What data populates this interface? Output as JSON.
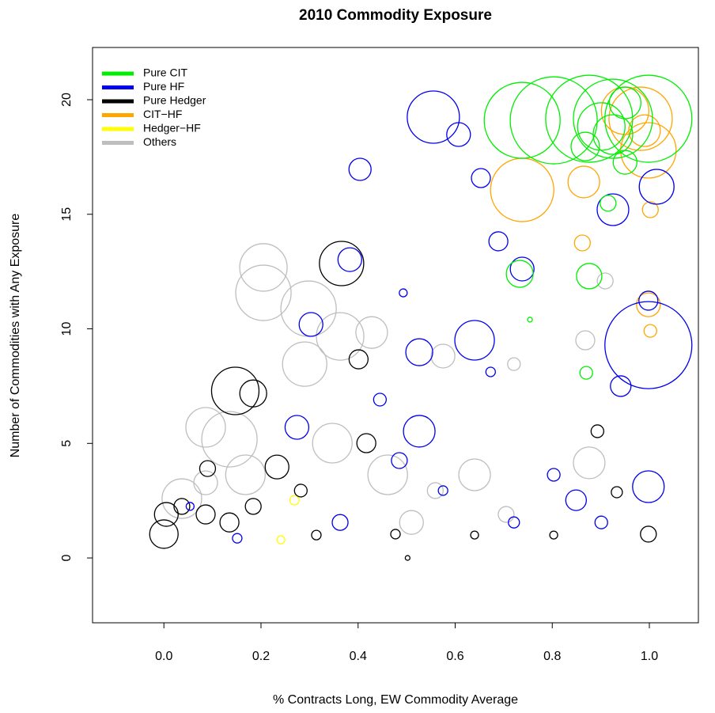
{
  "chart_data": {
    "type": "scatter",
    "title": "2010 Commodity Exposure",
    "x_label": "% Contracts Long, EW Commodity Average",
    "y_label": "Number of Commodities with Any Exposure",
    "xlim": [
      -0.147,
      1.101
    ],
    "ylim": [
      -2.83,
      22.28
    ],
    "xticks": [
      {
        "value": 0,
        "label": "0.0"
      },
      0.2,
      0.4,
      0.6,
      0.8,
      {
        "value": 1,
        "label": "1.0"
      }
    ],
    "yticks": [
      0,
      5,
      10,
      15,
      20
    ],
    "legend": "top-left",
    "series": [
      {
        "name": "Pure CIT",
        "color": "#00ee00",
        "x": [
          0.738,
          0.803,
          0.876,
          0.925,
          0.998,
          0.901,
          0.925,
          0.95,
          0.95,
          0.868,
          0.733,
          0.876,
          0.87,
          0.754,
          0.915
        ],
        "values": [
          19.1,
          19.1,
          19.17,
          19.17,
          19.17,
          18.83,
          18.48,
          19.86,
          17.27,
          17.96,
          12.4,
          12.3,
          8.08,
          10.4,
          15.48
        ],
        "sizes": [
          48,
          55,
          55,
          50,
          55,
          30,
          25,
          20,
          15,
          18,
          17,
          16,
          8,
          3,
          10
        ]
      },
      {
        "name": "Pure HF",
        "color": "#0000ee",
        "x": [
          0.555,
          0.404,
          0.607,
          0.653,
          1.015,
          0.925,
          0.383,
          0.303,
          0.526,
          0.64,
          0.998,
          0.941,
          0.526,
          0.274,
          0.998,
          0.849,
          0.485,
          0.738,
          0.689,
          0.673,
          0.445,
          0.803,
          0.575,
          0.363,
          0.151,
          0.054,
          0.721,
          0.901,
          0.998,
          0.493
        ],
        "values": [
          19.24,
          16.96,
          18.48,
          16.58,
          16.2,
          15.2,
          13.02,
          10.19,
          8.98,
          9.5,
          9.29,
          7.5,
          5.53,
          5.7,
          3.11,
          2.52,
          4.25,
          12.61,
          13.82,
          8.12,
          6.91,
          3.63,
          2.94,
          1.55,
          0.86,
          2.25,
          1.55,
          1.55,
          11.23,
          11.57
        ],
        "sizes": [
          33,
          14,
          15,
          12,
          22,
          20,
          15,
          15,
          17,
          25,
          55,
          13,
          20,
          15,
          20,
          13,
          10,
          15,
          12,
          6,
          8,
          8,
          6,
          10,
          6,
          5,
          7,
          8,
          12,
          5
        ]
      },
      {
        "name": "Pure Hedger",
        "color": "#000000",
        "x": [
          0.366,
          0.147,
          0.184,
          0.401,
          0.417,
          0.233,
          0.0,
          0.005,
          0.037,
          0.086,
          0.135,
          0.184,
          0.09,
          0.893,
          0.933,
          0.998,
          0.477,
          0.64,
          0.803,
          0.314,
          0.502,
          0.282
        ],
        "values": [
          12.85,
          7.29,
          7.18,
          8.67,
          5.01,
          3.97,
          1.04,
          1.9,
          2.25,
          1.9,
          1.55,
          2.25,
          3.9,
          5.53,
          2.87,
          1.04,
          1.04,
          1.0,
          1.0,
          1.0,
          0.0,
          2.94
        ],
        "sizes": [
          28,
          30,
          17,
          12,
          12,
          15,
          18,
          15,
          10,
          12,
          12,
          10,
          10,
          8,
          7,
          10,
          6,
          5,
          5,
          6,
          3,
          8
        ]
      },
      {
        "name": "CIT−HF",
        "color": "#ffa500",
        "x": [
          0.738,
          0.982,
          0.998,
          0.95,
          0.99,
          0.865,
          0.862,
          1.002,
          0.998,
          1.002
        ],
        "values": [
          16.06,
          19.17,
          17.79,
          19.52,
          18.65,
          16.41,
          13.75,
          15.2,
          11.05,
          9.91
        ],
        "sizes": [
          40,
          40,
          35,
          30,
          20,
          20,
          10,
          10,
          15,
          8
        ]
      },
      {
        "name": "Hedger−HF",
        "color": "#ffff00",
        "x": [
          0.269,
          0.241
        ],
        "values": [
          2.52,
          0.79
        ],
        "sizes": [
          6,
          5
        ]
      },
      {
        "name": "Others",
        "color": "#bebebe",
        "x": [
          0.205,
          0.205,
          0.298,
          0.363,
          0.29,
          0.428,
          0.135,
          0.086,
          0.168,
          0.347,
          0.461,
          0.64,
          0.876,
          0.868,
          0.037,
          0.086,
          0.721,
          0.575,
          0.51,
          0.705,
          0.909,
          0.559
        ],
        "values": [
          12.68,
          11.57,
          10.88,
          9.67,
          8.46,
          9.84,
          5.18,
          5.7,
          3.63,
          5.01,
          3.63,
          3.63,
          4.15,
          9.5,
          2.59,
          3.28,
          8.46,
          8.81,
          1.55,
          1.9,
          12.09,
          2.94
        ],
        "sizes": [
          30,
          35,
          35,
          30,
          28,
          20,
          35,
          25,
          25,
          25,
          25,
          20,
          20,
          12,
          25,
          15,
          8,
          15,
          15,
          10,
          10,
          10
        ]
      }
    ]
  }
}
